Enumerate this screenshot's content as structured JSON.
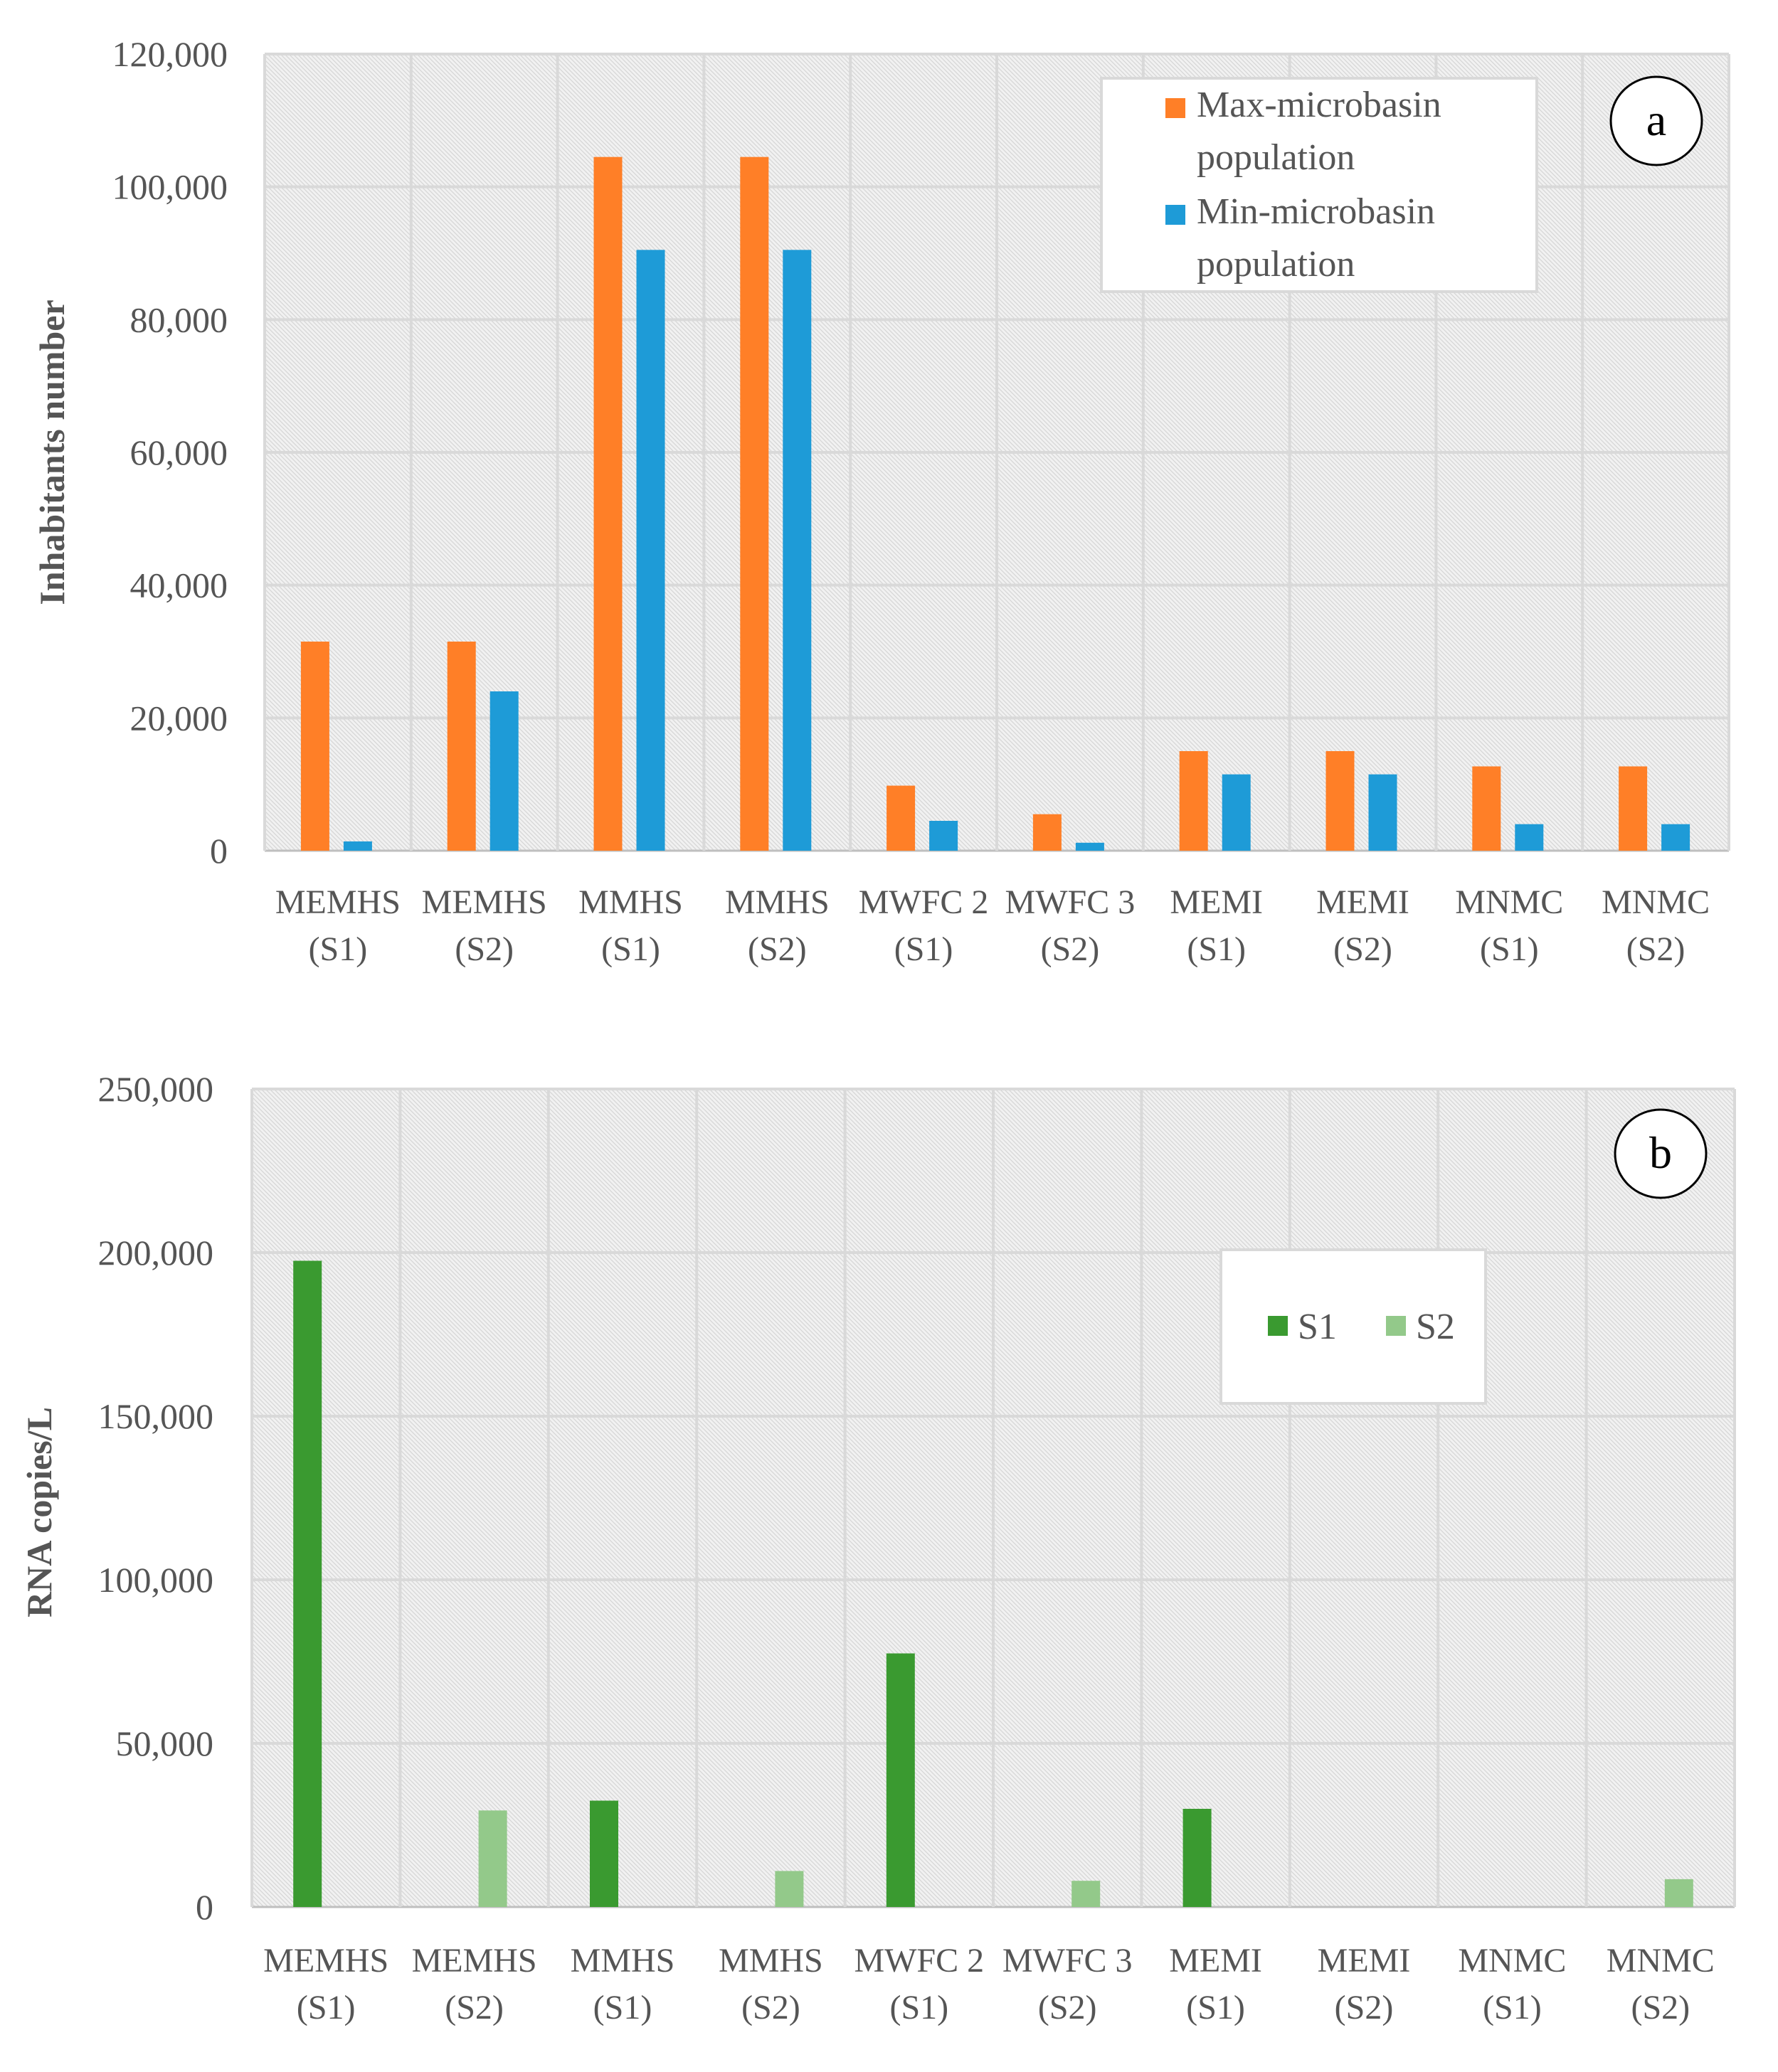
{
  "chart_data": [
    {
      "type": "bar",
      "panel_tag": "a",
      "categories": [
        [
          "MEMHS",
          "(S1)"
        ],
        [
          "MEMHS",
          "(S2)"
        ],
        [
          "MMHS",
          "(S1)"
        ],
        [
          "MMHS",
          "(S2)"
        ],
        [
          "MWFC 2",
          "(S1)"
        ],
        [
          "MWFC 3",
          "(S2)"
        ],
        [
          "MEMI",
          "(S1)"
        ],
        [
          "MEMI",
          "(S2)"
        ],
        [
          "MNMC",
          "(S1)"
        ],
        [
          "MNMC",
          "(S2)"
        ]
      ],
      "series": [
        {
          "name": [
            "Max-microbasin",
            "population"
          ],
          "color": "#FF7F27",
          "values": [
            31500,
            31500,
            104500,
            104500,
            9800,
            5500,
            15000,
            15000,
            12700,
            12700
          ]
        },
        {
          "name": [
            "Min-microbasin",
            "population"
          ],
          "color": "#1E9BD7",
          "values": [
            1400,
            24000,
            90500,
            90500,
            4500,
            1200,
            11500,
            11500,
            4000,
            4000
          ]
        }
      ],
      "ylabel": "Inhabitants number",
      "xlabel": "",
      "ylim": [
        0,
        120000
      ],
      "yticks": [
        "0",
        "20,000",
        "40,000",
        "60,000",
        "80,000",
        "100,000",
        "120,000"
      ],
      "grid": true,
      "legend_position": "top-right"
    },
    {
      "type": "bar",
      "panel_tag": "b",
      "categories": [
        [
          "MEMHS",
          "(S1)"
        ],
        [
          "MEMHS",
          "(S2)"
        ],
        [
          "MMHS",
          "(S1)"
        ],
        [
          "MMHS",
          "(S2)"
        ],
        [
          "MWFC 2",
          "(S1)"
        ],
        [
          "MWFC 3",
          "(S2)"
        ],
        [
          "MEMI",
          "(S1)"
        ],
        [
          "MEMI",
          "(S2)"
        ],
        [
          "MNMC",
          "(S1)"
        ],
        [
          "MNMC",
          "(S2)"
        ]
      ],
      "series": [
        {
          "name": [
            "S1"
          ],
          "color": "#3A9A30",
          "values": [
            197500,
            0,
            32500,
            0,
            77500,
            0,
            30000,
            0,
            0,
            0
          ]
        },
        {
          "name": [
            "S2"
          ],
          "color": "#93C98A",
          "values": [
            0,
            29500,
            0,
            11000,
            0,
            8000,
            0,
            0,
            0,
            8500
          ]
        }
      ],
      "ylabel": "RNA copies/L",
      "xlabel": "",
      "ylim": [
        0,
        250000
      ],
      "yticks": [
        "0",
        "50,000",
        "100,000",
        "150,000",
        "200,000",
        "250,000"
      ],
      "grid": true,
      "legend_position": "upper-right"
    }
  ]
}
